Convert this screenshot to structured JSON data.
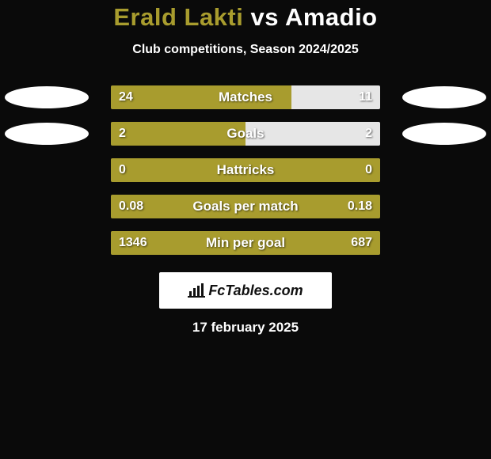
{
  "title": {
    "player1": "Erald Lakti",
    "vs": "vs",
    "player2": "Amadio"
  },
  "subtitle": "Club competitions, Season 2024/2025",
  "colors": {
    "player1_bar": "#a89c2e",
    "player2_bar": "#e6e6e6",
    "neutral_bar": "#3a3a3a",
    "background": "#0a0a0a"
  },
  "rows": [
    {
      "label": "Matches",
      "left_val": "24",
      "right_val": "11",
      "left_pct": 67,
      "right_pct": 33,
      "show_avatars": true
    },
    {
      "label": "Goals",
      "left_val": "2",
      "right_val": "2",
      "left_pct": 50,
      "right_pct": 50,
      "show_avatars": true
    },
    {
      "label": "Hattricks",
      "left_val": "0",
      "right_val": "0",
      "left_pct": 100,
      "right_pct": 0,
      "show_avatars": false
    },
    {
      "label": "Goals per match",
      "left_val": "0.08",
      "right_val": "0.18",
      "left_pct": 100,
      "right_pct": 0,
      "show_avatars": false
    },
    {
      "label": "Min per goal",
      "left_val": "1346",
      "right_val": "687",
      "left_pct": 100,
      "right_pct": 0,
      "show_avatars": false
    }
  ],
  "brand": "FcTables.com",
  "date": "17 february 2025"
}
